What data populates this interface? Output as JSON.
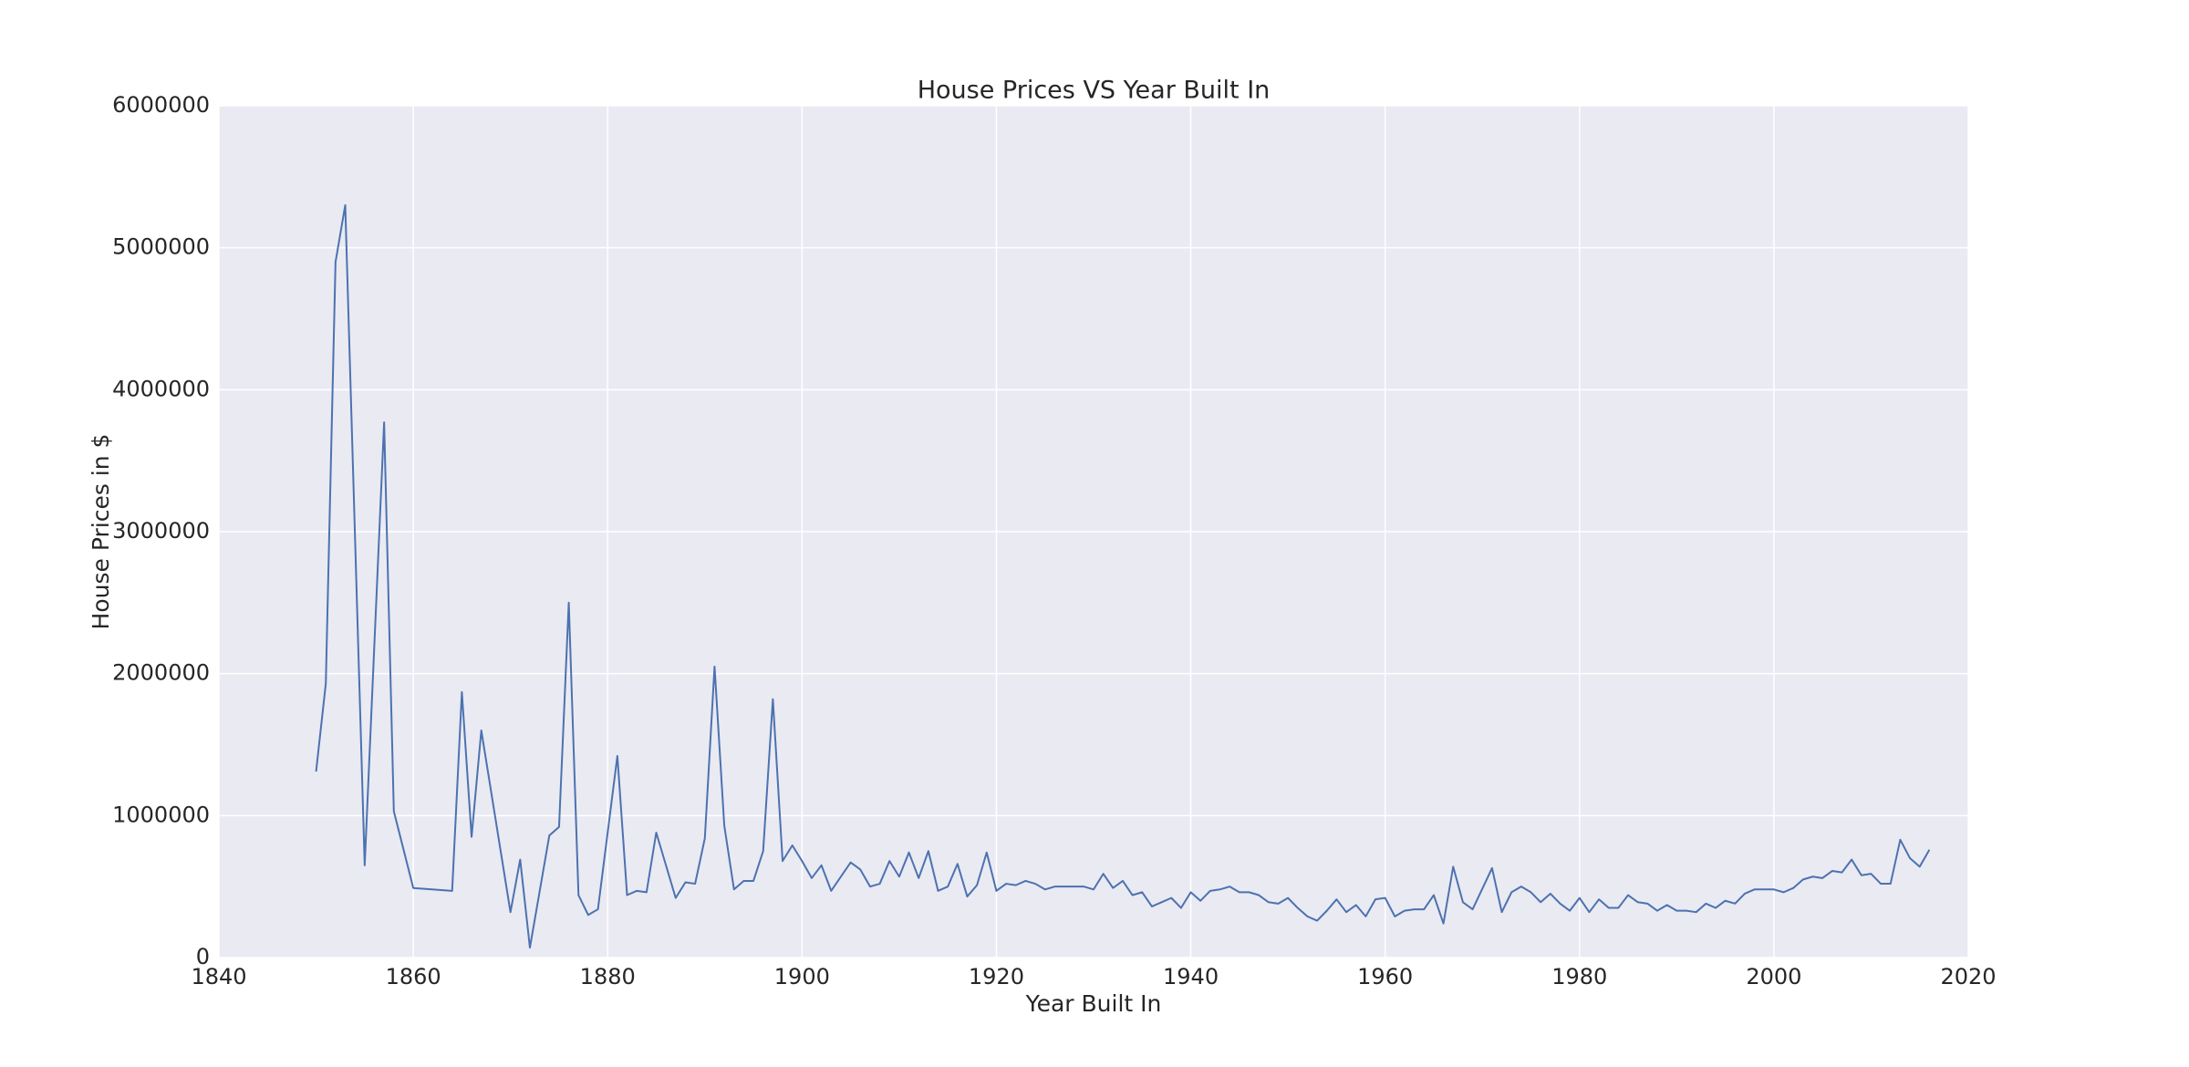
{
  "chart_data": {
    "type": "line",
    "title": "House Prices VS Year Built In",
    "x_label": "Year Built In",
    "y_label": "House Prices in $",
    "x": [
      1850,
      1851,
      1852,
      1853,
      1855,
      1857,
      1858,
      1860,
      1864,
      1865,
      1866,
      1867,
      1870,
      1871,
      1872,
      1874,
      1875,
      1876,
      1877,
      1878,
      1879,
      1881,
      1882,
      1883,
      1884,
      1885,
      1887,
      1888,
      1889,
      1890,
      1891,
      1892,
      1893,
      1894,
      1895,
      1896,
      1897,
      1898,
      1899,
      1900,
      1901,
      1902,
      1903,
      1905,
      1906,
      1907,
      1908,
      1909,
      1910,
      1911,
      1912,
      1913,
      1914,
      1915,
      1916,
      1917,
      1918,
      1919,
      1920,
      1921,
      1922,
      1923,
      1924,
      1925,
      1926,
      1927,
      1928,
      1929,
      1930,
      1931,
      1932,
      1933,
      1934,
      1935,
      1936,
      1937,
      1938,
      1939,
      1940,
      1941,
      1942,
      1943,
      1944,
      1945,
      1946,
      1947,
      1948,
      1949,
      1950,
      1951,
      1952,
      1953,
      1954,
      1955,
      1956,
      1957,
      1958,
      1959,
      1960,
      1961,
      1962,
      1963,
      1964,
      1965,
      1966,
      1967,
      1968,
      1969,
      1971,
      1972,
      1973,
      1974,
      1975,
      1976,
      1977,
      1978,
      1979,
      1980,
      1981,
      1982,
      1983,
      1984,
      1985,
      1986,
      1987,
      1988,
      1989,
      1990,
      1991,
      1992,
      1993,
      1994,
      1995,
      1996,
      1997,
      1998,
      1999,
      2000,
      2001,
      2002,
      2003,
      2004,
      2005,
      2006,
      2007,
      2008,
      2009,
      2010,
      2011,
      2012,
      2013,
      2014,
      2015,
      2016
    ],
    "series": [
      {
        "name": "House Prices",
        "color": "#4c72b0",
        "values": [
          1310000,
          1930000,
          4900000,
          5300000,
          650000,
          3770000,
          1030000,
          490000,
          470000,
          1870000,
          850000,
          1600000,
          320000,
          690000,
          70000,
          860000,
          920000,
          2500000,
          440000,
          300000,
          340000,
          1420000,
          440000,
          470000,
          460000,
          880000,
          420000,
          530000,
          520000,
          840000,
          2050000,
          930000,
          480000,
          540000,
          540000,
          750000,
          1820000,
          680000,
          790000,
          680000,
          560000,
          650000,
          470000,
          670000,
          620000,
          500000,
          520000,
          680000,
          570000,
          740000,
          560000,
          750000,
          470000,
          500000,
          660000,
          430000,
          510000,
          740000,
          470000,
          520000,
          510000,
          540000,
          520000,
          480000,
          500000,
          500000,
          500000,
          500000,
          480000,
          590000,
          490000,
          540000,
          440000,
          460000,
          360000,
          390000,
          420000,
          350000,
          460000,
          400000,
          470000,
          480000,
          500000,
          460000,
          460000,
          440000,
          390000,
          380000,
          420000,
          350000,
          290000,
          260000,
          330000,
          410000,
          320000,
          370000,
          290000,
          410000,
          420000,
          290000,
          330000,
          340000,
          340000,
          440000,
          240000,
          640000,
          390000,
          340000,
          630000,
          320000,
          460000,
          500000,
          460000,
          390000,
          450000,
          380000,
          330000,
          420000,
          320000,
          410000,
          350000,
          350000,
          440000,
          390000,
          380000,
          330000,
          370000,
          330000,
          330000,
          320000,
          380000,
          350000,
          400000,
          380000,
          450000,
          480000,
          480000,
          480000,
          460000,
          490000,
          550000,
          570000,
          560000,
          610000,
          600000,
          690000,
          580000,
          590000,
          520000,
          520000,
          830000,
          700000,
          640000,
          760000
        ]
      }
    ],
    "xlim": [
      1840,
      2020
    ],
    "xticks": [
      1840,
      1860,
      1880,
      1900,
      1920,
      1940,
      1960,
      1980,
      2000,
      2020
    ],
    "ylim": [
      0,
      6000000
    ],
    "yticks": [
      0,
      1000000,
      2000000,
      3000000,
      4000000,
      5000000,
      6000000
    ],
    "grid": true,
    "background": "#eaeaf2"
  }
}
